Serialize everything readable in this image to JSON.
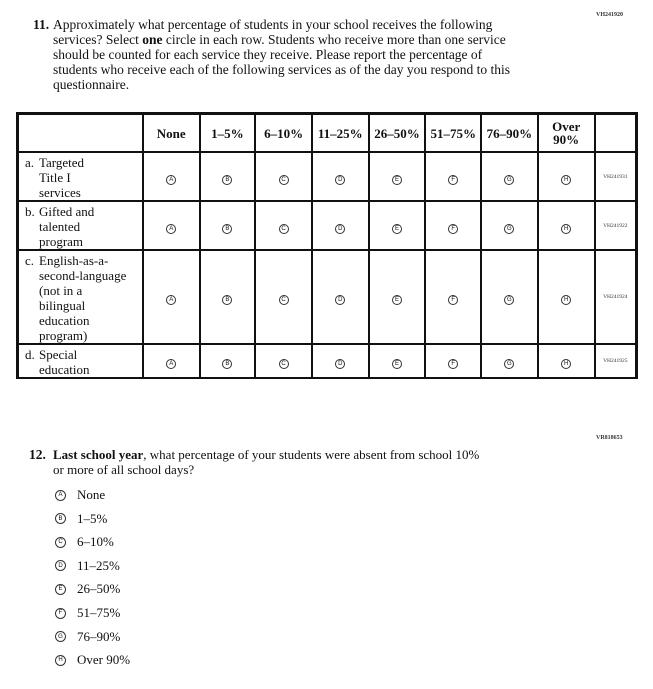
{
  "q11": {
    "code": "VH241920",
    "number": "11.",
    "lines": [
      "Approximately what percentage of students in your school receives the following",
      "services? Select ",
      "one",
      " circle in each row. Students who receive more than one service",
      "should be counted for each service they receive. Please report the percentage of",
      "students who receive each of the following services as of the day you respond to this",
      "questionnaire."
    ],
    "columns": [
      "None",
      "1–5%",
      "6–10%",
      "11–25%",
      "26–50%",
      "51–75%",
      "76–90%",
      "Over 90%"
    ],
    "bubble_letters": [
      "A",
      "B",
      "C",
      "D",
      "E",
      "F",
      "G",
      "H"
    ],
    "rows": [
      {
        "letter": "a.",
        "lines": [
          "Targeted",
          "Title I",
          "services"
        ],
        "code": "VH241931"
      },
      {
        "letter": "b.",
        "lines": [
          "Gifted and",
          "talented",
          "program"
        ],
        "code": "VH241922"
      },
      {
        "letter": "c.",
        "lines": [
          "English-as-a-",
          "second-language",
          "(not in a",
          "bilingual",
          "education",
          "program)"
        ],
        "code": "VH241924"
      },
      {
        "letter": "d.",
        "lines": [
          "Special",
          "education"
        ],
        "code": "VH241925"
      }
    ]
  },
  "q12": {
    "code": "VR818653",
    "number": "12.",
    "bold_lead": "Last school year",
    "line1": ", what percentage of your students were absent from school 10%",
    "line2": "or more of all school days?",
    "options": [
      {
        "letter": "A",
        "label": "None"
      },
      {
        "letter": "B",
        "label": "1–5%"
      },
      {
        "letter": "C",
        "label": "6–10%"
      },
      {
        "letter": "D",
        "label": "11–25%"
      },
      {
        "letter": "E",
        "label": "26–50%"
      },
      {
        "letter": "F",
        "label": "51–75%"
      },
      {
        "letter": "G",
        "label": "76–90%"
      },
      {
        "letter": "H",
        "label": "Over 90%"
      }
    ]
  }
}
